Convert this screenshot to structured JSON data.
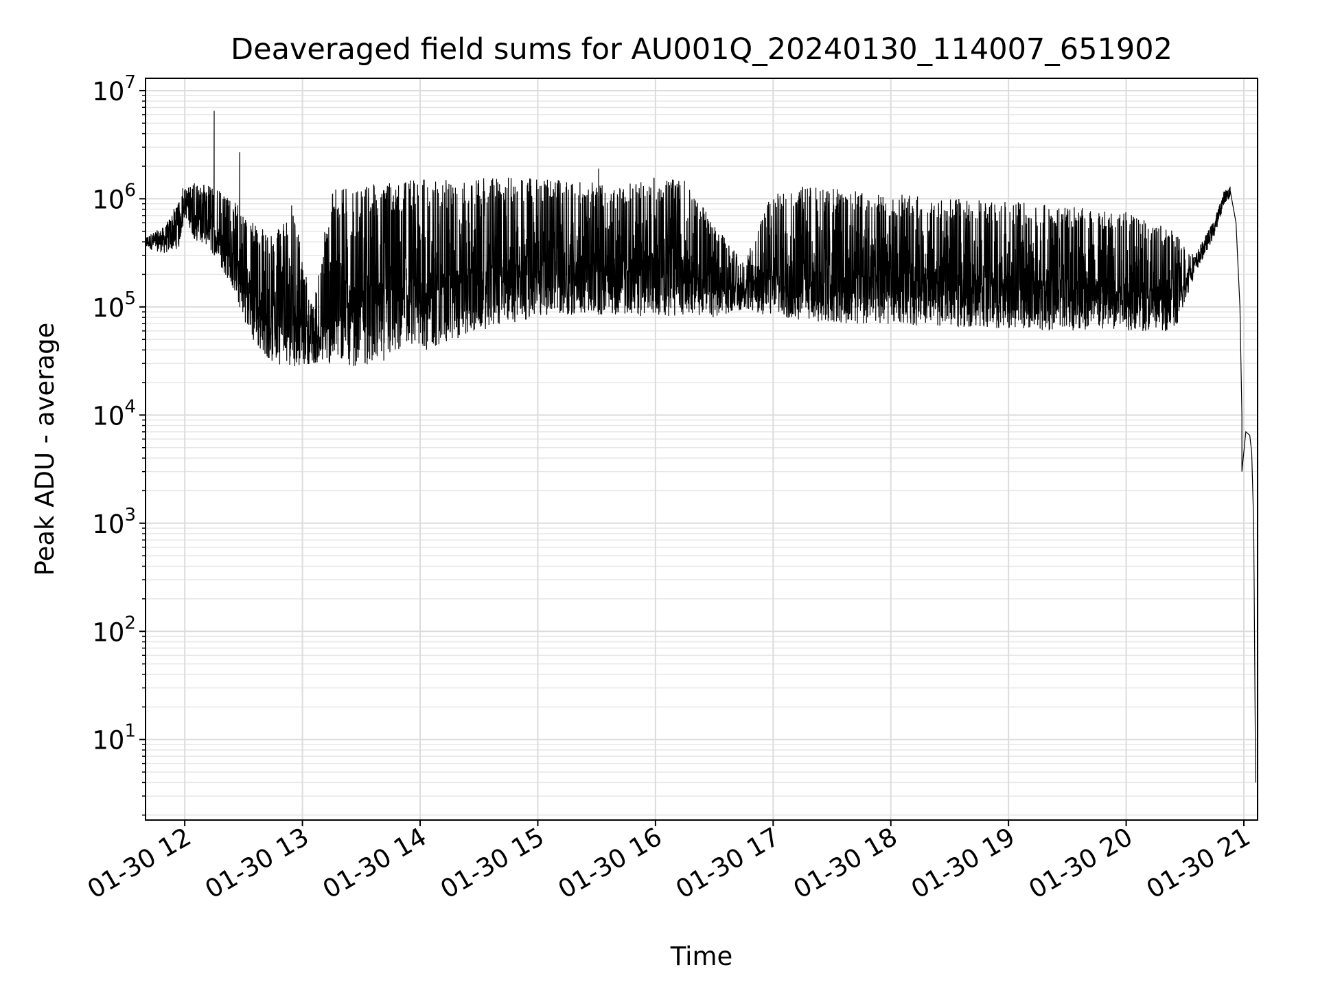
{
  "chart_data": {
    "type": "line",
    "title": "Deaveraged field sums for AU001Q_20240130_114007_651902",
    "xlabel": "Time",
    "ylabel": "Peak ADU - average",
    "yscale": "log",
    "grid": true,
    "grid_minor": true,
    "line_color": "#000000",
    "xlim": [
      "2024-01-30 11:40",
      "2024-01-30 21:07"
    ],
    "ylim": [
      1.8,
      13000000
    ],
    "x_ticks": [
      {
        "value": "2024-01-30 12:00",
        "label": "01-30 12"
      },
      {
        "value": "2024-01-30 13:00",
        "label": "01-30 13"
      },
      {
        "value": "2024-01-30 14:00",
        "label": "01-30 14"
      },
      {
        "value": "2024-01-30 15:00",
        "label": "01-30 15"
      },
      {
        "value": "2024-01-30 16:00",
        "label": "01-30 16"
      },
      {
        "value": "2024-01-30 17:00",
        "label": "01-30 17"
      },
      {
        "value": "2024-01-30 18:00",
        "label": "01-30 18"
      },
      {
        "value": "2024-01-30 19:00",
        "label": "01-30 19"
      },
      {
        "value": "2024-01-30 20:00",
        "label": "01-30 20"
      },
      {
        "value": "2024-01-30 21:00",
        "label": "01-30 21"
      }
    ],
    "y_ticks": [
      {
        "value": 10,
        "base": "10",
        "exp": "1"
      },
      {
        "value": 100,
        "base": "10",
        "exp": "2"
      },
      {
        "value": 1000,
        "base": "10",
        "exp": "3"
      },
      {
        "value": 10000,
        "base": "10",
        "exp": "4"
      },
      {
        "value": 100000,
        "base": "10",
        "exp": "5"
      },
      {
        "value": 1000000,
        "base": "10",
        "exp": "6"
      },
      {
        "value": 10000000,
        "base": "10",
        "exp": "7"
      }
    ],
    "series": [
      {
        "envelope": [
          {
            "x": "2024-01-30 11:40",
            "low": 350000,
            "high": 450000
          },
          {
            "x": "2024-01-30 11:50",
            "low": 310000,
            "high": 560000
          },
          {
            "x": "2024-01-30 11:57",
            "low": 350000,
            "high": 1000000
          },
          {
            "x": "2024-01-30 12:00",
            "low": 700000,
            "high": 1250000
          },
          {
            "x": "2024-01-30 12:05",
            "low": 420000,
            "high": 1400000
          },
          {
            "x": "2024-01-30 12:15",
            "low": 300000,
            "high": 1300000
          },
          {
            "x": "2024-01-30 12:25",
            "low": 140000,
            "high": 1000000
          },
          {
            "x": "2024-01-30 12:35",
            "low": 45000,
            "high": 600000
          },
          {
            "x": "2024-01-30 12:45",
            "low": 30000,
            "high": 450000
          },
          {
            "x": "2024-01-30 12:55",
            "low": 28000,
            "high": 900000
          },
          {
            "x": "2024-01-30 13:05",
            "low": 30000,
            "high": 100000
          },
          {
            "x": "2024-01-30 13:15",
            "low": 29000,
            "high": 1300000
          },
          {
            "x": "2024-01-30 13:30",
            "low": 28000,
            "high": 1300000
          },
          {
            "x": "2024-01-30 13:45",
            "low": 33000,
            "high": 1450000
          },
          {
            "x": "2024-01-30 14:00",
            "low": 38000,
            "high": 1500000
          },
          {
            "x": "2024-01-30 14:15",
            "low": 48000,
            "high": 1550000
          },
          {
            "x": "2024-01-30 14:30",
            "low": 60000,
            "high": 1600000
          },
          {
            "x": "2024-01-30 14:45",
            "low": 70000,
            "high": 1600000
          },
          {
            "x": "2024-01-30 15:00",
            "low": 80000,
            "high": 1550000
          },
          {
            "x": "2024-01-30 15:20",
            "low": 85000,
            "high": 1500000
          },
          {
            "x": "2024-01-30 15:40",
            "low": 85000,
            "high": 1300000
          },
          {
            "x": "2024-01-30 16:00",
            "low": 80000,
            "high": 1600000
          },
          {
            "x": "2024-01-30 16:15",
            "low": 85000,
            "high": 1500000
          },
          {
            "x": "2024-01-30 16:30",
            "low": 80000,
            "high": 600000
          },
          {
            "x": "2024-01-30 16:45",
            "low": 95000,
            "high": 250000
          },
          {
            "x": "2024-01-30 17:00",
            "low": 80000,
            "high": 1200000
          },
          {
            "x": "2024-01-30 17:15",
            "low": 75000,
            "high": 1300000
          },
          {
            "x": "2024-01-30 17:30",
            "low": 70000,
            "high": 1250000
          },
          {
            "x": "2024-01-30 18:00",
            "low": 68000,
            "high": 1150000
          },
          {
            "x": "2024-01-30 18:30",
            "low": 66000,
            "high": 1000000
          },
          {
            "x": "2024-01-30 19:00",
            "low": 62000,
            "high": 950000
          },
          {
            "x": "2024-01-30 19:30",
            "low": 60000,
            "high": 850000
          },
          {
            "x": "2024-01-30 20:00",
            "low": 60000,
            "high": 750000
          },
          {
            "x": "2024-01-30 20:25",
            "low": 60000,
            "high": 500000
          },
          {
            "x": "2024-01-30 20:35",
            "low": 200000,
            "high": 300000
          },
          {
            "x": "2024-01-30 20:45",
            "low": 450000,
            "high": 650000
          },
          {
            "x": "2024-01-30 20:50",
            "low": 900000,
            "high": 1200000
          },
          {
            "x": "2024-01-30 20:53",
            "low": 1000000,
            "high": 1300000
          }
        ],
        "spikes": [
          {
            "x": "2024-01-30 12:15",
            "y": 6500000
          },
          {
            "x": "2024-01-30 12:28",
            "y": 2700000
          },
          {
            "x": "2024-01-30 15:31",
            "y": 1900000
          },
          {
            "x": "2024-01-30 11:59",
            "y": 1250000
          }
        ],
        "tail": [
          {
            "x": "2024-01-30 20:53",
            "y": 1200000
          },
          {
            "x": "2024-01-30 20:56",
            "y": 600000
          },
          {
            "x": "2024-01-30 20:58",
            "y": 100000
          },
          {
            "x": "2024-01-30 20:59",
            "y": 10000
          },
          {
            "x": "2024-01-30 20:59",
            "y": 3000
          },
          {
            "x": "2024-01-30 21:01",
            "y": 7000
          },
          {
            "x": "2024-01-30 21:03",
            "y": 6500
          },
          {
            "x": "2024-01-30 21:04",
            "y": 4500
          },
          {
            "x": "2024-01-30 21:05",
            "y": 1000
          },
          {
            "x": "2024-01-30 21:06",
            "y": 4
          }
        ]
      }
    ]
  }
}
